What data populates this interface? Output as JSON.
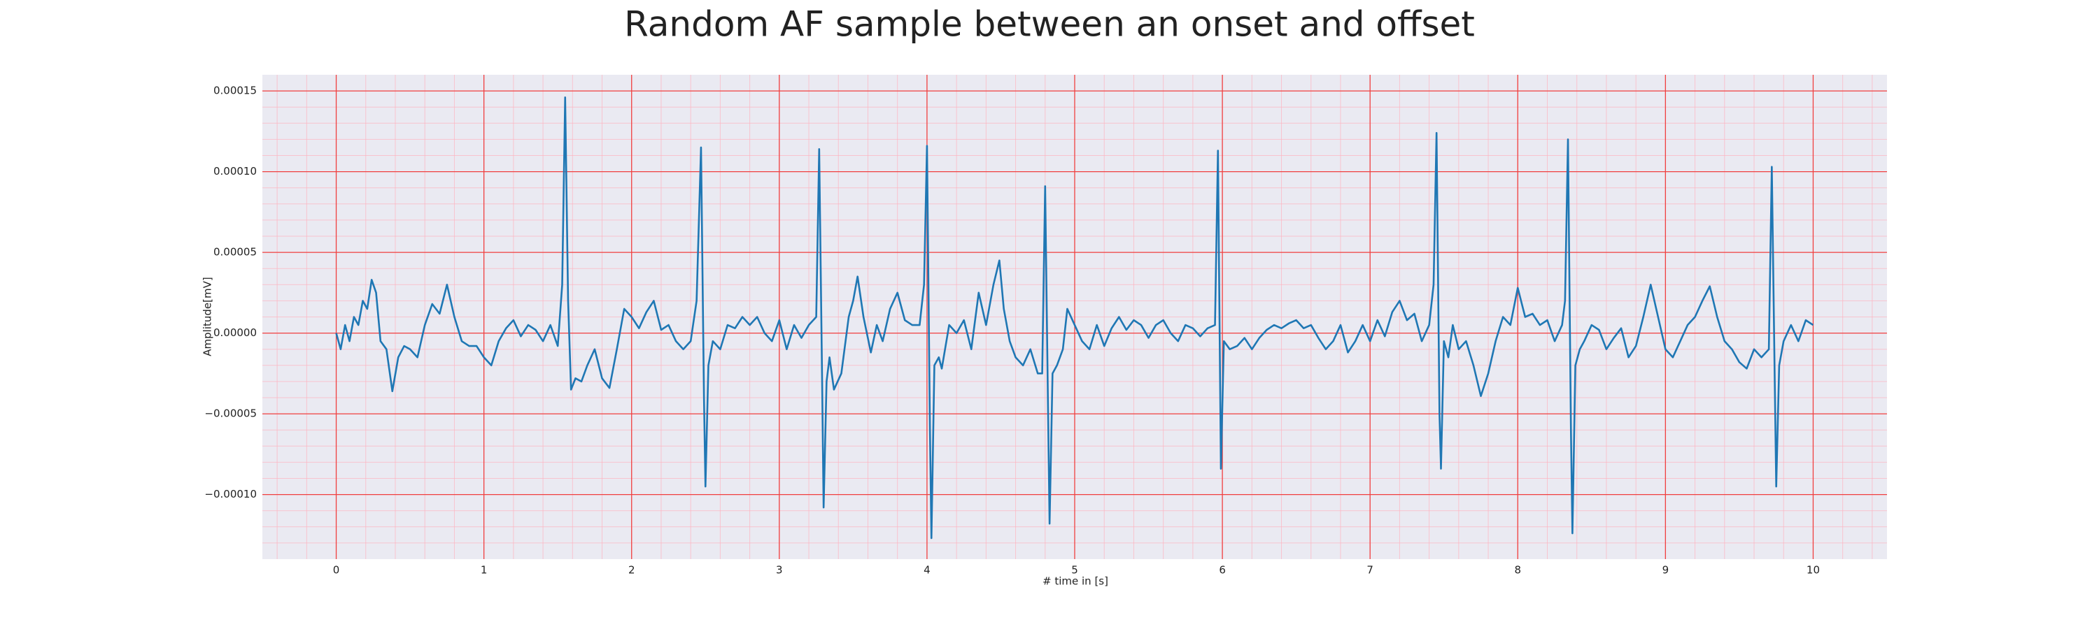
{
  "chart_data": {
    "type": "line",
    "title": "Random AF sample between an onset and offset",
    "xlabel": "# time in [s]",
    "ylabel": "Amplitude[mV]",
    "color": "#1f77b4",
    "grid": true,
    "minor_grid": true,
    "xlim": [
      -0.5,
      10.5
    ],
    "ylim": [
      -0.00014,
      0.00016
    ],
    "xticks": [
      0,
      1,
      2,
      3,
      4,
      5,
      6,
      7,
      8,
      9,
      10
    ],
    "yticks": [
      {
        "value": -0.0001,
        "label": "−0.00010"
      },
      {
        "value": -5e-05,
        "label": "−0.00005"
      },
      {
        "value": 0,
        "label": "0.00000"
      },
      {
        "value": 5e-05,
        "label": "0.00005"
      },
      {
        "value": 0.0001,
        "label": "0.00010"
      },
      {
        "value": 0.00015,
        "label": "0.00015"
      }
    ],
    "x": [
      0,
      0.03,
      0.06,
      0.09,
      0.12,
      0.15,
      0.18,
      0.21,
      0.24,
      0.27,
      0.3,
      0.34,
      0.38,
      0.42,
      0.46,
      0.5,
      0.55,
      0.6,
      0.65,
      0.7,
      0.75,
      0.8,
      0.85,
      0.9,
      0.95,
      1.0,
      1.05,
      1.1,
      1.15,
      1.2,
      1.25,
      1.3,
      1.35,
      1.4,
      1.45,
      1.5,
      1.53,
      1.55,
      1.57,
      1.59,
      1.62,
      1.66,
      1.7,
      1.75,
      1.8,
      1.85,
      1.9,
      1.95,
      2.0,
      2.05,
      2.1,
      2.15,
      2.2,
      2.25,
      2.3,
      2.35,
      2.4,
      2.44,
      2.47,
      2.49,
      2.5,
      2.52,
      2.55,
      2.6,
      2.65,
      2.7,
      2.75,
      2.8,
      2.85,
      2.9,
      2.95,
      3.0,
      3.05,
      3.1,
      3.15,
      3.2,
      3.25,
      3.27,
      3.29,
      3.3,
      3.32,
      3.34,
      3.37,
      3.42,
      3.47,
      3.5,
      3.53,
      3.57,
      3.62,
      3.66,
      3.7,
      3.75,
      3.8,
      3.85,
      3.9,
      3.95,
      3.98,
      4.0,
      4.02,
      4.03,
      4.05,
      4.08,
      4.1,
      4.15,
      4.2,
      4.25,
      4.3,
      4.35,
      4.4,
      4.45,
      4.49,
      4.52,
      4.56,
      4.6,
      4.65,
      4.7,
      4.75,
      4.78,
      4.8,
      4.82,
      4.83,
      4.85,
      4.88,
      4.92,
      4.95,
      5.0,
      5.05,
      5.1,
      5.15,
      5.2,
      5.25,
      5.3,
      5.35,
      5.4,
      5.45,
      5.5,
      5.55,
      5.6,
      5.65,
      5.7,
      5.75,
      5.8,
      5.85,
      5.9,
      5.95,
      5.97,
      5.99,
      6.01,
      6.05,
      6.1,
      6.15,
      6.2,
      6.25,
      6.3,
      6.35,
      6.4,
      6.45,
      6.5,
      6.55,
      6.6,
      6.65,
      6.7,
      6.75,
      6.8,
      6.85,
      6.9,
      6.95,
      7.0,
      7.05,
      7.1,
      7.15,
      7.2,
      7.25,
      7.3,
      7.35,
      7.4,
      7.43,
      7.45,
      7.47,
      7.48,
      7.5,
      7.53,
      7.56,
      7.6,
      7.65,
      7.7,
      7.75,
      7.8,
      7.85,
      7.9,
      7.95,
      8.0,
      8.05,
      8.1,
      8.15,
      8.2,
      8.25,
      8.3,
      8.32,
      8.34,
      8.36,
      8.37,
      8.39,
      8.42,
      8.45,
      8.5,
      8.55,
      8.6,
      8.65,
      8.7,
      8.75,
      8.8,
      8.85,
      8.9,
      8.95,
      9.0,
      9.05,
      9.1,
      9.15,
      9.2,
      9.25,
      9.3,
      9.35,
      9.4,
      9.45,
      9.5,
      9.55,
      9.6,
      9.65,
      9.7,
      9.72,
      9.74,
      9.75,
      9.77,
      9.8,
      9.85,
      9.9,
      9.95,
      10.0
    ],
    "values": [
      0,
      -1e-05,
      5e-06,
      -5e-06,
      1e-05,
      5e-06,
      2e-05,
      1.5e-05,
      3.3e-05,
      2.5e-05,
      -5e-06,
      -1e-05,
      -3.6e-05,
      -1.5e-05,
      -8e-06,
      -1e-05,
      -1.5e-05,
      5e-06,
      1.8e-05,
      1.2e-05,
      3e-05,
      1e-05,
      -5e-06,
      -8e-06,
      -8e-06,
      -1.5e-05,
      -2e-05,
      -5e-06,
      3e-06,
      8e-06,
      -2e-06,
      5e-06,
      2e-06,
      -5e-06,
      5e-06,
      -8e-06,
      3e-05,
      0.000146,
      2e-05,
      -3.5e-05,
      -2.8e-05,
      -3e-05,
      -2e-05,
      -1e-05,
      -2.8e-05,
      -3.4e-05,
      -1e-05,
      1.5e-05,
      1e-05,
      3e-06,
      1.3e-05,
      2e-05,
      2e-06,
      5e-06,
      -5e-06,
      -1e-05,
      -5e-06,
      2e-05,
      0.000115,
      -4e-05,
      -9.5e-05,
      -2e-05,
      -5e-06,
      -1e-05,
      5e-06,
      3e-06,
      1e-05,
      5e-06,
      1e-05,
      0,
      -5e-06,
      8e-06,
      -1e-05,
      5e-06,
      -3e-06,
      5e-06,
      1e-05,
      0.000114,
      -3e-05,
      -0.000108,
      -3e-05,
      -1.5e-05,
      -3.5e-05,
      -2.5e-05,
      1e-05,
      2e-05,
      3.5e-05,
      1e-05,
      -1.2e-05,
      5e-06,
      -5e-06,
      1.5e-05,
      2.5e-05,
      8e-06,
      5e-06,
      5e-06,
      3e-05,
      0.000116,
      -6e-05,
      -0.000127,
      -2e-05,
      -1.5e-05,
      -2.2e-05,
      5e-06,
      0,
      8e-06,
      -1e-05,
      2.5e-05,
      5e-06,
      3e-05,
      4.5e-05,
      1.5e-05,
      -5e-06,
      -1.5e-05,
      -2e-05,
      -1e-05,
      -2.5e-05,
      -2.5e-05,
      9.1e-05,
      -5e-05,
      -0.000118,
      -2.5e-05,
      -2e-05,
      -1e-05,
      1.5e-05,
      5e-06,
      -5e-06,
      -1e-05,
      5e-06,
      -8e-06,
      3e-06,
      1e-05,
      2e-06,
      8e-06,
      5e-06,
      -3e-06,
      5e-06,
      8e-06,
      0,
      -5e-06,
      5e-06,
      3e-06,
      -2e-06,
      3e-06,
      5e-06,
      0.000113,
      -8.4e-05,
      -5e-06,
      -1e-05,
      -8e-06,
      -3e-06,
      -1e-05,
      -3e-06,
      2e-06,
      5e-06,
      3e-06,
      6e-06,
      8e-06,
      3e-06,
      5e-06,
      -3e-06,
      -1e-05,
      -5e-06,
      5e-06,
      -1.2e-05,
      -5e-06,
      5e-06,
      -5e-06,
      8e-06,
      -2e-06,
      1.3e-05,
      2e-05,
      8e-06,
      1.2e-05,
      -5e-06,
      5e-06,
      3e-05,
      0.000124,
      -5e-05,
      -8.4e-05,
      -5e-06,
      -1.5e-05,
      5e-06,
      -1e-05,
      -5e-06,
      -2e-05,
      -3.9e-05,
      -2.5e-05,
      -5e-06,
      1e-05,
      5e-06,
      2.8e-05,
      1e-05,
      1.2e-05,
      5e-06,
      8e-06,
      -5e-06,
      5e-06,
      2e-05,
      0.00012,
      -6e-05,
      -0.000124,
      -2e-05,
      -1e-05,
      -5e-06,
      5e-06,
      2e-06,
      -1e-05,
      -3e-06,
      3e-06,
      -1.5e-05,
      -8e-06,
      1e-05,
      3e-05,
      1e-05,
      -1e-05,
      -1.5e-05,
      -5e-06,
      5e-06,
      1e-05,
      2e-05,
      2.9e-05,
      1e-05,
      -5e-06,
      -1e-05,
      -1.8e-05,
      -2.2e-05,
      -1e-05,
      -1.5e-05,
      -1e-05,
      0.000103,
      -3e-05,
      -9.5e-05,
      -2e-05,
      -5e-06,
      5e-06,
      -5e-06,
      8e-06,
      5e-06
    ]
  }
}
